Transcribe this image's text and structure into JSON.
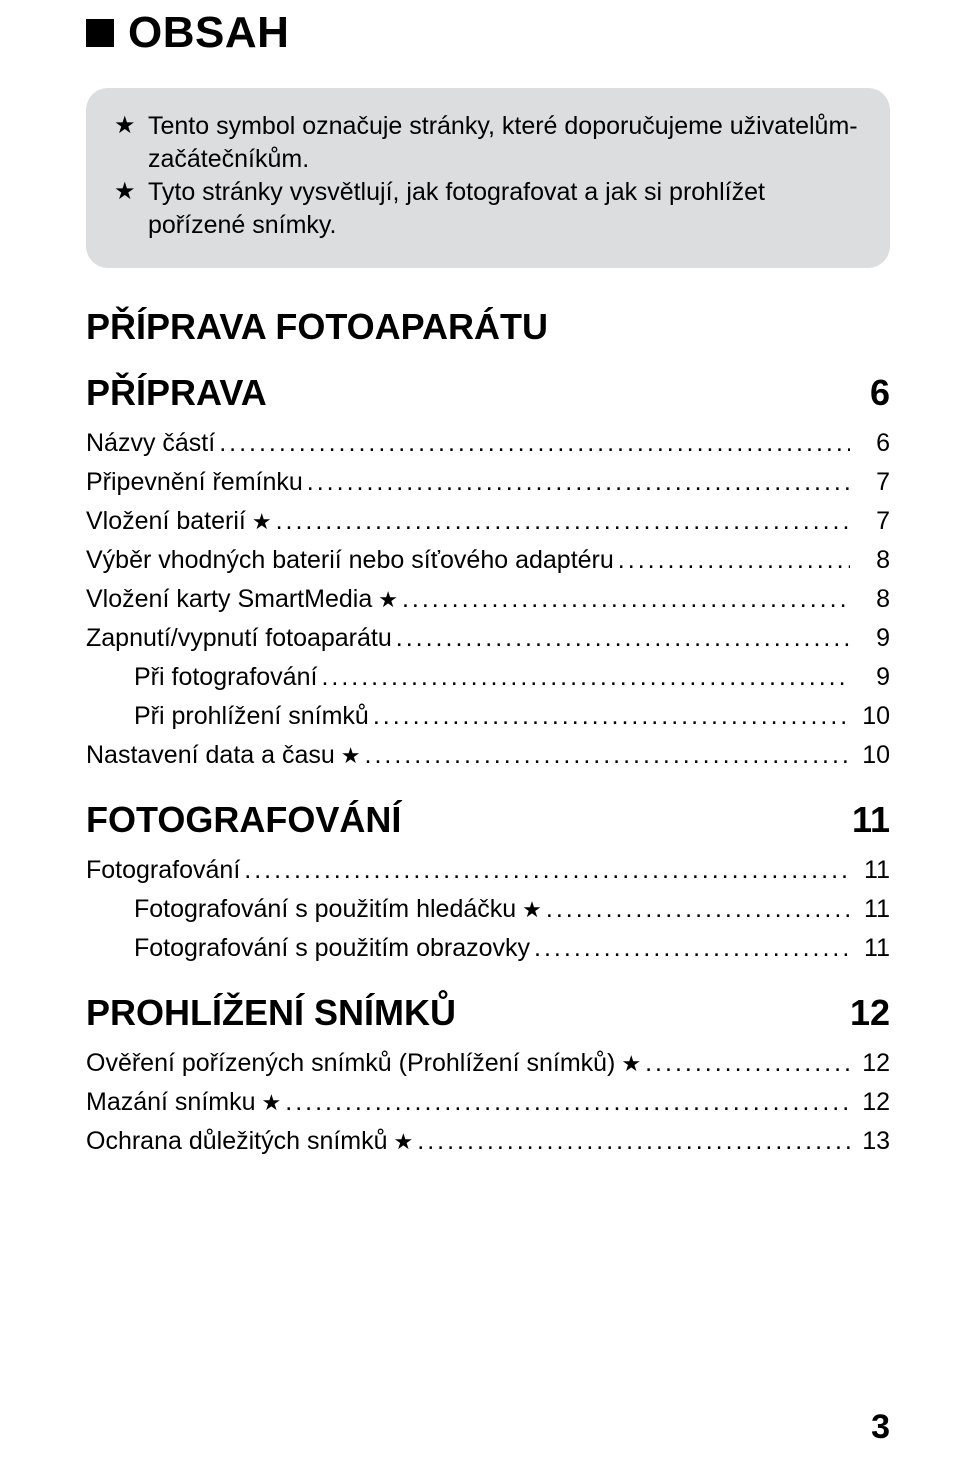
{
  "title": "OBSAH",
  "note_box": {
    "line1": "Tento symbol označuje stránky, které doporučujeme uživatelům-začátečníkům.",
    "line2": "Tyto stránky vysvětlují, jak fotografovat a jak si prohlížet pořízené snímky."
  },
  "section0": {
    "super": "PŘÍPRAVA FOTOAPARÁTU"
  },
  "section1": {
    "title": "PŘÍPRAVA",
    "page": "6",
    "items": [
      {
        "label": "Názvy částí",
        "page": "6",
        "star": false,
        "indent": 0
      },
      {
        "label": "Připevnění řemínku",
        "page": "7",
        "star": false,
        "indent": 0
      },
      {
        "label": "Vložení baterií",
        "page": "7",
        "star": true,
        "indent": 0
      },
      {
        "label": "Výběr vhodných baterií nebo síťového adaptéru",
        "page": "8",
        "star": false,
        "indent": 0
      },
      {
        "label": "Vložení karty SmartMedia",
        "page": "8",
        "star": true,
        "indent": 0
      },
      {
        "label": "Zapnutí/vypnutí fotoaparátu",
        "page": "9",
        "star": false,
        "indent": 0
      },
      {
        "label": "Při fotografování",
        "page": "9",
        "star": false,
        "indent": 1
      },
      {
        "label": "Při prohlížení snímků",
        "page": "10",
        "star": false,
        "indent": 1
      },
      {
        "label": "Nastavení data a času",
        "page": "10",
        "star": true,
        "indent": 0
      }
    ]
  },
  "section2": {
    "title": "FOTOGRAFOVÁNÍ",
    "page": "11",
    "items": [
      {
        "label": "Fotografování",
        "page": "11",
        "star": false,
        "indent": 0
      },
      {
        "label": "Fotografování s použitím hledáčku",
        "page": "11",
        "star": true,
        "indent": 1
      },
      {
        "label": "Fotografování s použitím obrazovky",
        "page": "11",
        "star": false,
        "indent": 1
      }
    ]
  },
  "section3": {
    "title": "PROHLÍŽENÍ SNÍMKŮ",
    "page": "12",
    "items": [
      {
        "label": "Ověření pořízených snímků (Prohlížení snímků)",
        "page": "12",
        "star": true,
        "indent": 0
      },
      {
        "label": "Mazání snímku",
        "page": "12",
        "star": true,
        "indent": 0
      },
      {
        "label": "Ochrana důležitých snímků",
        "page": "13",
        "star": true,
        "indent": 0
      }
    ]
  },
  "page_number": "3",
  "colors": {
    "background": "#ffffff",
    "text": "#000000",
    "note_bg": "#dcdddf"
  },
  "typography": {
    "body_fontsize": 25,
    "heading_fontsize": 44,
    "section_fontsize": 36,
    "font_family": "Arial, Helvetica, sans-serif"
  }
}
